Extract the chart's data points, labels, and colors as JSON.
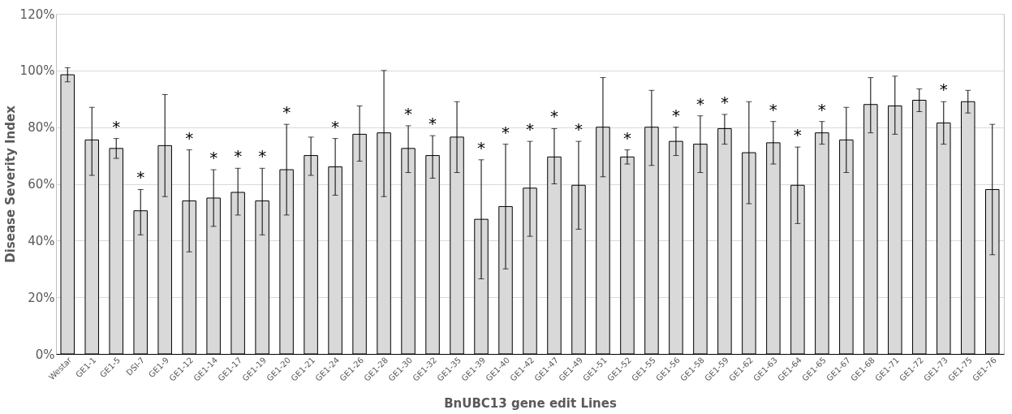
{
  "chart_data": {
    "type": "bar",
    "xlabel": "BnUBC13 gene edit Lines",
    "ylabel": "Disease Severity Index",
    "categories": [
      "Westar",
      "GE1-1",
      "GE1-5",
      "DSI-7",
      "GE1-9",
      "GE1-12",
      "GE1-14",
      "GE1-17",
      "GE1-19",
      "GE1-20",
      "GE1-21",
      "GE1-24",
      "GE1-26",
      "GE1-28",
      "GE1-30",
      "GE1-32",
      "GE1-35",
      "GE1-39",
      "GE1-40",
      "GE1-42",
      "GE1-47",
      "GE1-49",
      "GE1-51",
      "GE1-52",
      "GE1-55",
      "GE1-56",
      "GE1-58",
      "GE1-59",
      "GE1-62",
      "GE1-63",
      "GE1-64",
      "GE1-65",
      "GE1-67",
      "GE1-68",
      "GE1-71",
      "GE1-72",
      "GE1-73",
      "GE1-75",
      "GE1-76"
    ],
    "values": [
      98.5,
      75.5,
      72.5,
      50.5,
      73.5,
      54,
      55,
      57,
      54,
      65,
      70,
      66,
      77.5,
      78,
      72.5,
      70,
      76.5,
      47.5,
      52,
      58.5,
      69.5,
      59.5,
      80,
      69.5,
      80,
      75,
      74,
      79.5,
      71,
      74.5,
      59.5,
      78,
      75.5,
      88,
      87.5,
      89.5,
      81.5,
      89,
      58
    ],
    "color": "#d9d9d9",
    "errors": [
      [
        96,
        101
      ],
      [
        63,
        87
      ],
      [
        69,
        76
      ],
      [
        42,
        58
      ],
      [
        55.5,
        91.5
      ],
      [
        36,
        72
      ],
      [
        45,
        65
      ],
      [
        49,
        65.5
      ],
      [
        42,
        65.5
      ],
      [
        49,
        81
      ],
      [
        63,
        76.5
      ],
      [
        56,
        76
      ],
      [
        68,
        87.5
      ],
      [
        55.5,
        100
      ],
      [
        64,
        80.5
      ],
      [
        62,
        77
      ],
      [
        64,
        89
      ],
      [
        26.5,
        68.5
      ],
      [
        30,
        74
      ],
      [
        41.5,
        75
      ],
      [
        60,
        79.5
      ],
      [
        44,
        75
      ],
      [
        62.5,
        97.5
      ],
      [
        67,
        72
      ],
      [
        66.5,
        93
      ],
      [
        70,
        80
      ],
      [
        64,
        84
      ],
      [
        74,
        84.5
      ],
      [
        53,
        89
      ],
      [
        67,
        82
      ],
      [
        46,
        73
      ],
      [
        74,
        82
      ],
      [
        64,
        87
      ],
      [
        78,
        97.5
      ],
      [
        77.5,
        98
      ],
      [
        85.5,
        93.5
      ],
      [
        74,
        89
      ],
      [
        85,
        93
      ],
      [
        35,
        81
      ]
    ],
    "ylim": [
      0,
      120
    ],
    "yticks": [
      {
        "value": 0,
        "label": "0%"
      },
      {
        "value": 20,
        "label": "20%"
      },
      {
        "value": 40,
        "label": "40%"
      },
      {
        "value": 60,
        "label": "60%"
      },
      {
        "value": 80,
        "label": "80%"
      },
      {
        "value": 100,
        "label": "100%"
      },
      {
        "value": 120,
        "label": "120%"
      }
    ],
    "grid": "y",
    "annotations": [
      {
        "text": "*",
        "x": "GE1-5",
        "y": 76
      },
      {
        "text": "*",
        "x": "DSI-7",
        "y": 58
      },
      {
        "text": "*",
        "x": "GE1-12",
        "y": 72
      },
      {
        "text": "*",
        "x": "GE1-14",
        "y": 65
      },
      {
        "text": "*",
        "x": "GE1-17",
        "y": 65.5
      },
      {
        "text": "*",
        "x": "GE1-19",
        "y": 65.5
      },
      {
        "text": "*",
        "x": "GE1-20",
        "y": 81
      },
      {
        "text": "*",
        "x": "GE1-24",
        "y": 76
      },
      {
        "text": "*",
        "x": "GE1-30",
        "y": 80.5
      },
      {
        "text": "*",
        "x": "GE1-32",
        "y": 77
      },
      {
        "text": "*",
        "x": "GE1-39",
        "y": 68.5
      },
      {
        "text": "*",
        "x": "GE1-40",
        "y": 74
      },
      {
        "text": "*",
        "x": "GE1-42",
        "y": 75
      },
      {
        "text": "*",
        "x": "GE1-47",
        "y": 79.5
      },
      {
        "text": "*",
        "x": "GE1-49",
        "y": 75
      },
      {
        "text": "*",
        "x": "GE1-52",
        "y": 72
      },
      {
        "text": "*",
        "x": "GE1-56",
        "y": 80
      },
      {
        "text": "*",
        "x": "GE1-58",
        "y": 84
      },
      {
        "text": "*",
        "x": "GE1-59",
        "y": 84.5
      },
      {
        "text": "*",
        "x": "GE1-63",
        "y": 82
      },
      {
        "text": "*",
        "x": "GE1-64",
        "y": 73
      },
      {
        "text": "*",
        "x": "GE1-65",
        "y": 82
      },
      {
        "text": "*",
        "x": "GE1-73",
        "y": 89
      }
    ]
  }
}
